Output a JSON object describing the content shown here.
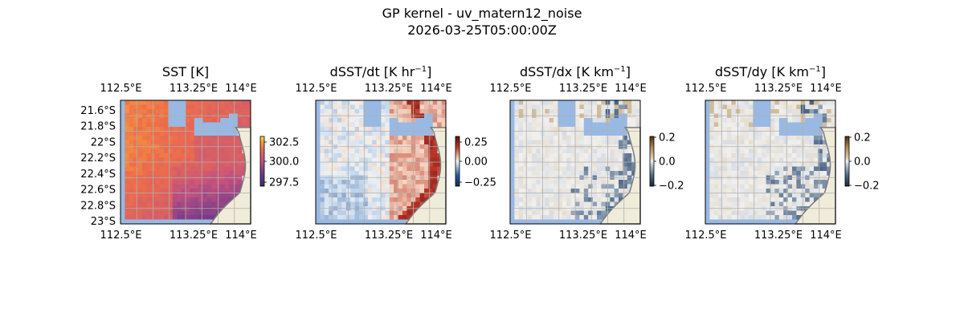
{
  "figure": {
    "title_line1": "GP kernel - uv_matern12_noise",
    "title_line2": "2026-03-25T05:00:00Z"
  },
  "colors": {
    "land": "#efecd9",
    "coast": "#7a7a7a",
    "nodata_water": "#98b9e4",
    "grid": "#b0b0b0",
    "thermal_low": "#3b2a6e",
    "thermal_mid": "#c2527f",
    "thermal_high": "#f6a33a",
    "diverging_neg": "#2c5d9e",
    "diverging_pos": "#c0392b",
    "neutral_mid": "#f1f0ee"
  },
  "chart_data": [
    {
      "type": "heatmap",
      "title": "SST [K]",
      "title_base": "SST [K",
      "title_sup": "",
      "title_tail": "]",
      "colormap": "thermal",
      "x_ticks": [
        "112.5°E",
        "113.25°E",
        "114°E"
      ],
      "y_ticks": [
        "21.6°S",
        "21.8°S",
        "22°S",
        "22.2°S",
        "22.4°S",
        "22.6°S",
        "22.8°S",
        "23°S"
      ],
      "show_y_ticks": true,
      "xlim": [
        112.5,
        114.0
      ],
      "ylim": [
        -23.0,
        -21.5
      ],
      "colorbar": {
        "ticks": [
          "302.5",
          "300.0",
          "297.5"
        ],
        "range": [
          297.0,
          303.5
        ]
      }
    },
    {
      "type": "heatmap",
      "title": "dSST/dt [K hr−1]",
      "title_base": "dSST/dt [K hr",
      "title_sup": "−1",
      "title_tail": "]",
      "colormap": "diverging",
      "x_ticks": [
        "112.5°E",
        "113.25°E",
        "114°E"
      ],
      "y_ticks": [],
      "show_y_ticks": false,
      "xlim": [
        112.5,
        114.0
      ],
      "ylim": [
        -23.0,
        -21.5
      ],
      "colorbar": {
        "ticks": [
          "0.25",
          "0.00",
          "−0.25"
        ],
        "range": [
          -0.38,
          0.38
        ]
      }
    },
    {
      "type": "heatmap",
      "title": "dSST/dx [K km−1]",
      "title_base": "dSST/dx [K km",
      "title_sup": "−1",
      "title_tail": "]",
      "colormap": "gradient",
      "x_ticks": [
        "112.5°E",
        "113.25°E",
        "114°E"
      ],
      "y_ticks": [],
      "show_y_ticks": false,
      "xlim": [
        112.5,
        114.0
      ],
      "ylim": [
        -23.0,
        -21.5
      ],
      "colorbar": {
        "ticks": [
          "0.2",
          "0.0",
          "−0.2"
        ],
        "range": [
          -0.2,
          0.2
        ]
      }
    },
    {
      "type": "heatmap",
      "title": "dSST/dy [K km−1]",
      "title_base": "dSST/dy [K km",
      "title_sup": "−1",
      "title_tail": "]",
      "colormap": "gradient",
      "x_ticks": [
        "112.5°E",
        "113.25°E",
        "114°E"
      ],
      "y_ticks": [],
      "show_y_ticks": false,
      "xlim": [
        112.5,
        114.0
      ],
      "ylim": [
        -23.0,
        -21.5
      ],
      "colorbar": {
        "ticks": [
          "0.2",
          "0.0",
          "−0.2"
        ],
        "range": [
          -0.2,
          0.2
        ]
      }
    }
  ]
}
